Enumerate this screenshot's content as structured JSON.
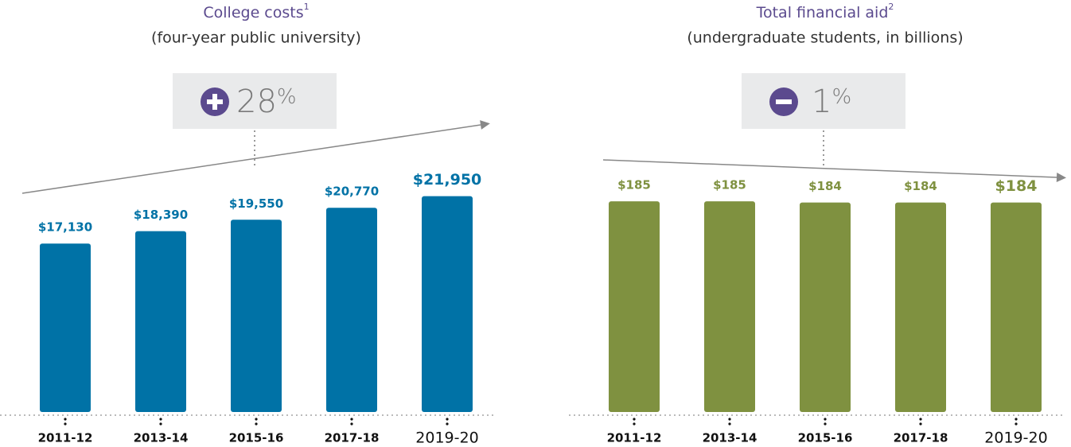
{
  "chart_data": [
    {
      "type": "bar",
      "title": "College costs",
      "title_superscript": "1",
      "subtitle": "(four-year public university)",
      "annotation": "28",
      "annotation_unit": "%",
      "trend": "up",
      "categories": [
        "2011-12",
        "2013-14",
        "2015-16",
        "2017-18",
        "2019-20"
      ],
      "values": [
        17130,
        18390,
        19550,
        20770,
        21950
      ],
      "value_labels": [
        "$17,130",
        "$18,390",
        "$19,550",
        "$20,770",
        "$21,950"
      ],
      "color": "#0072a6",
      "ylim": [
        0,
        22000
      ]
    },
    {
      "type": "bar",
      "title": "Total financial aid",
      "title_superscript": "2",
      "subtitle": "(undergraduate students, in billions)",
      "annotation": "1",
      "annotation_unit": "%",
      "trend": "down",
      "categories": [
        "2011-12",
        "2013-14",
        "2015-16",
        "2017-18",
        "2019-20"
      ],
      "values": [
        185,
        185,
        184,
        184,
        184
      ],
      "value_labels": [
        "$185",
        "$185",
        "$184",
        "$184",
        "$184"
      ],
      "color": "#7f9140",
      "ylim": [
        0,
        190
      ]
    }
  ]
}
